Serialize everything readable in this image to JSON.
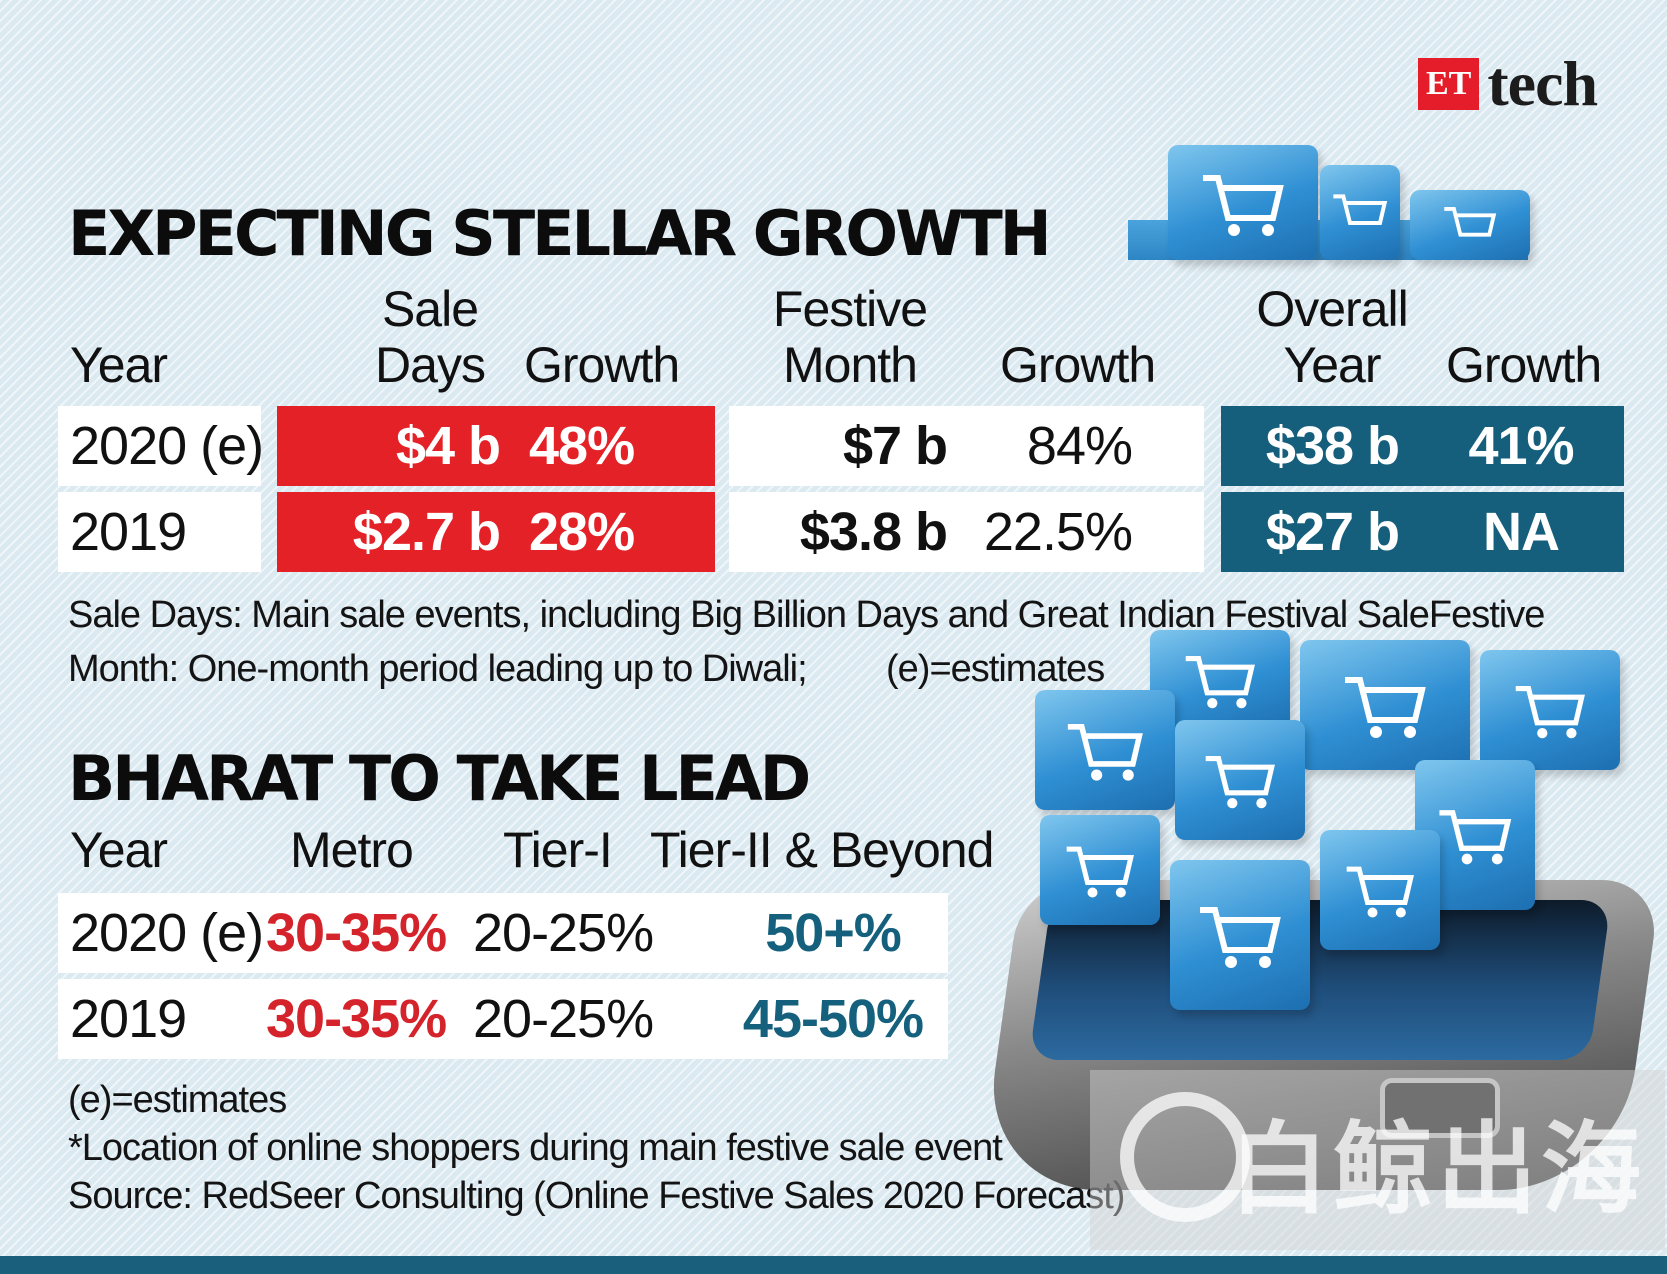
{
  "brand": {
    "et": "ET",
    "tech": "tech"
  },
  "chart_data": [
    {
      "type": "table",
      "title": "EXPECTING STELLAR GROWTH",
      "headers": {
        "year": "Year",
        "sale_days_top": "Sale",
        "sale_days_bottom": "Days",
        "sale_growth": "Growth",
        "festive_top": "Festive",
        "festive_bottom": "Month",
        "festive_growth": "Growth",
        "overall_top": "Overall",
        "overall_bottom": "Year",
        "overall_growth": "Growth"
      },
      "rows": [
        {
          "year": "2020 (e)",
          "sale_days": "$4 b",
          "sale_growth": "48%",
          "festive_month": "$7 b",
          "festive_growth": "84%",
          "overall_year": "$38 b",
          "overall_growth": "41%"
        },
        {
          "year": "2019",
          "sale_days": "$2.7 b",
          "sale_growth": "28%",
          "festive_month": "$3.8 b",
          "festive_growth": "22.5%",
          "overall_year": "$27 b",
          "overall_growth": "NA"
        }
      ],
      "note_line1": "Sale Days: Main sale events, including Big Billion Days and Great Indian Festival SaleFestive",
      "note_line2": "Month: One-month period leading up to Diwali;",
      "note_line2_extra": "(e)=estimates"
    },
    {
      "type": "table",
      "title": "BHARAT TO TAKE LEAD",
      "headers": {
        "year": "Year",
        "metro": "Metro",
        "tier1": "Tier-I",
        "tier2": "Tier-II & Beyond"
      },
      "rows": [
        {
          "year": "2020 (e)",
          "metro": "30-35%",
          "tier1": "20-25%",
          "tier2": "50+%"
        },
        {
          "year": "2019",
          "metro": "30-35%",
          "tier1": "20-25%",
          "tier2": "45-50%"
        }
      ],
      "notes": [
        "(e)=estimates",
        "*Location of online shoppers during main festive sale event",
        "Source: RedSeer Consulting (Online Festive Sales 2020 Forecast)"
      ]
    }
  ],
  "watermark": "白鲸出海",
  "colors": {
    "red": "#e32127",
    "blue": "#155f7c",
    "background": "#dbe9f1"
  }
}
